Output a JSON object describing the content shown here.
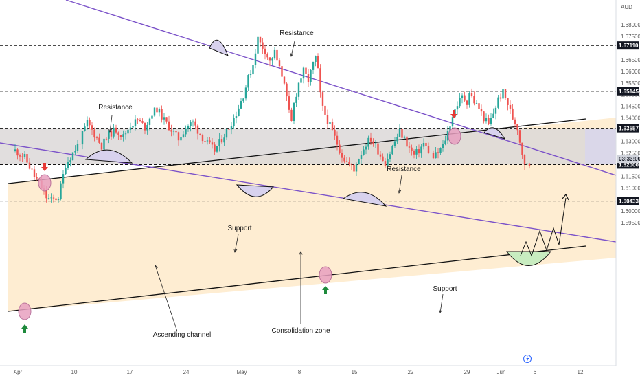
{
  "chart_data": {
    "type": "candlestick",
    "title": "",
    "axis_currency": "AUD",
    "x_ticks": [
      "Apr",
      "10",
      "17",
      "24",
      "May",
      "8",
      "15",
      "22",
      "29",
      "Jun",
      "6",
      "12"
    ],
    "y_ticks": [
      "1.68000",
      "1.67500",
      "1.66500",
      "1.66000",
      "1.65500",
      "1.65000",
      "1.64500",
      "1.64000",
      "1.63000",
      "1.62500",
      "1.61500",
      "1.61000",
      "1.60000",
      "1.59500"
    ],
    "y_range": [
      1.5915,
      1.6885
    ],
    "levels": [
      {
        "value": 1.6711,
        "label": "1.67110",
        "style": "dashed",
        "badge": "dark"
      },
      {
        "value": 1.65145,
        "label": "1.65145",
        "style": "dashed",
        "badge": "dark"
      },
      {
        "value": 1.63557,
        "label": "1.63557",
        "style": "dashed",
        "badge": "dark"
      },
      {
        "value": 1.62,
        "label": "1.62000",
        "style": "dashed",
        "badge": "dark"
      },
      {
        "value": 1.60433,
        "label": "1.60433",
        "style": "dashed",
        "badge": "dark"
      }
    ],
    "current_price": {
      "value": 1.62245,
      "label": "03:33:00"
    },
    "annotations": [
      {
        "text": "Resistance"
      },
      {
        "text": "Resistance"
      },
      {
        "text": "Resistance"
      },
      {
        "text": "Support"
      },
      {
        "text": "Support"
      },
      {
        "text": "Ascending channel"
      },
      {
        "text": "Consolidation zone"
      }
    ],
    "colors": {
      "bull": "#26a69a",
      "bear": "#ef5350",
      "channel_fill": "#fde7c3",
      "consolidation_fill": "#dcd8d8",
      "trend_line": "#7b52c9",
      "badge_bg": "#131722",
      "current_badge_bg": "#d1d4dc",
      "marker_circle": "#e8a0c0",
      "arrow_up": "#1e8a3c",
      "arrow_down": "#e53935"
    },
    "close_path": [
      [
        0,
        1.626
      ],
      [
        4,
        1.623
      ],
      [
        8,
        1.615
      ],
      [
        10,
        1.612
      ],
      [
        13,
        1.606
      ],
      [
        15,
        1.6045
      ],
      [
        18,
        1.606
      ],
      [
        21,
        1.62
      ],
      [
        24,
        1.625
      ],
      [
        27,
        1.63
      ],
      [
        30,
        1.638
      ],
      [
        33,
        1.633
      ],
      [
        36,
        1.628
      ],
      [
        39,
        1.633
      ],
      [
        42,
        1.635
      ],
      [
        45,
        1.632
      ],
      [
        48,
        1.637
      ],
      [
        51,
        1.639
      ],
      [
        54,
        1.636
      ],
      [
        57,
        1.642
      ],
      [
        59,
        1.644
      ],
      [
        62,
        1.639
      ],
      [
        65,
        1.635
      ],
      [
        68,
        1.631
      ],
      [
        71,
        1.636
      ],
      [
        74,
        1.638
      ],
      [
        77,
        1.633
      ],
      [
        80,
        1.629
      ],
      [
        83,
        1.626
      ],
      [
        86,
        1.631
      ],
      [
        89,
        1.636
      ],
      [
        92,
        1.642
      ],
      [
        95,
        1.65
      ],
      [
        97,
        1.657
      ],
      [
        99,
        1.663
      ],
      [
        100,
        1.669
      ],
      [
        101,
        1.674
      ],
      [
        102,
        1.672
      ],
      [
        104,
        1.669
      ],
      [
        106,
        1.664
      ],
      [
        108,
        1.668
      ],
      [
        110,
        1.661
      ],
      [
        112,
        1.656
      ],
      [
        113,
        1.648
      ],
      [
        114,
        1.642
      ],
      [
        115,
        1.638
      ],
      [
        116,
        1.646
      ],
      [
        118,
        1.655
      ],
      [
        120,
        1.66
      ],
      [
        122,
        1.656
      ],
      [
        124,
        1.663
      ],
      [
        125,
        1.666
      ],
      [
        126,
        1.66
      ],
      [
        127,
        1.65
      ],
      [
        128,
        1.644
      ],
      [
        130,
        1.639
      ],
      [
        132,
        1.634
      ],
      [
        134,
        1.629
      ],
      [
        136,
        1.624
      ],
      [
        138,
        1.621
      ],
      [
        140,
        1.619
      ],
      [
        141,
        1.617
      ],
      [
        142,
        1.621
      ],
      [
        144,
        1.625
      ],
      [
        146,
        1.629
      ],
      [
        148,
        1.631
      ],
      [
        150,
        1.628
      ],
      [
        152,
        1.624
      ],
      [
        154,
        1.621
      ],
      [
        156,
        1.625
      ],
      [
        158,
        1.63
      ],
      [
        160,
        1.634
      ],
      [
        162,
        1.631
      ],
      [
        164,
        1.627
      ],
      [
        166,
        1.624
      ],
      [
        168,
        1.626
      ],
      [
        170,
        1.629
      ],
      [
        172,
        1.626
      ],
      [
        174,
        1.623
      ],
      [
        176,
        1.625
      ],
      [
        178,
        1.628
      ],
      [
        180,
        1.634
      ],
      [
        182,
        1.641
      ],
      [
        184,
        1.646
      ],
      [
        186,
        1.649
      ],
      [
        188,
        1.647
      ],
      [
        189,
        1.651
      ],
      [
        191,
        1.647
      ],
      [
        193,
        1.644
      ],
      [
        195,
        1.64
      ],
      [
        197,
        1.637
      ],
      [
        199,
        1.642
      ],
      [
        201,
        1.648
      ],
      [
        203,
        1.651
      ],
      [
        205,
        1.646
      ],
      [
        207,
        1.64
      ],
      [
        209,
        1.636
      ],
      [
        210,
        1.63
      ],
      [
        211,
        1.625
      ],
      [
        212,
        1.621
      ],
      [
        213,
        1.6195
      ],
      [
        214,
        1.62
      ]
    ]
  }
}
